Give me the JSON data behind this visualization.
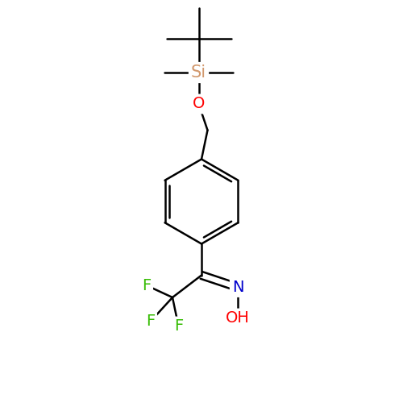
{
  "background_color": "#ffffff",
  "bond_color": "#000000",
  "atom_colors": {
    "Si": "#d2996e",
    "O": "#ff0000",
    "N": "#0000cc",
    "F": "#33bb00",
    "OH": "#ff0000"
  },
  "bond_width": 1.8,
  "font_size": 14,
  "figsize": [
    5.0,
    5.0
  ],
  "dpi": 100,
  "xlim": [
    0,
    10
  ],
  "ylim": [
    0,
    10
  ]
}
